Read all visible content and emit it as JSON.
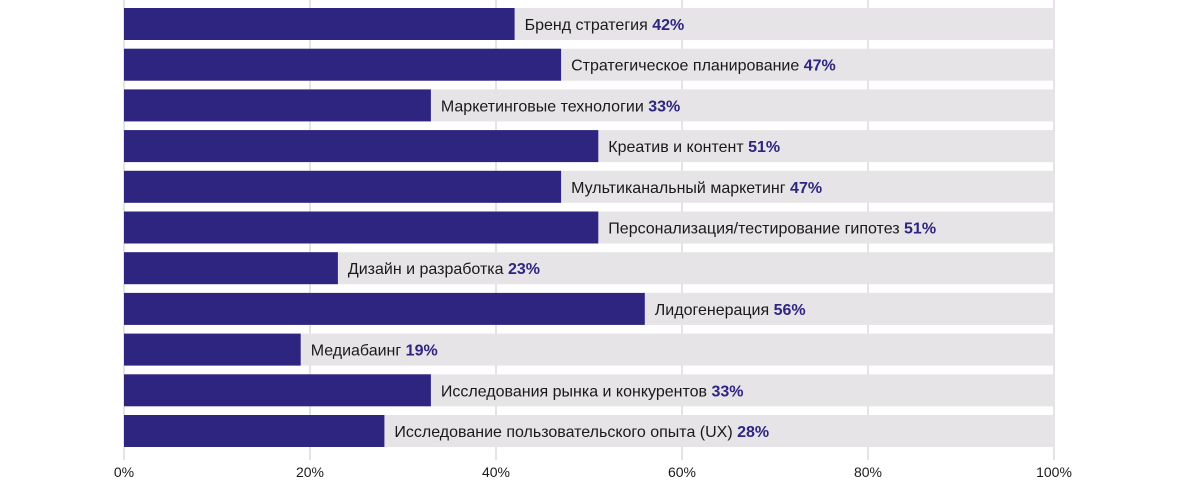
{
  "chart_data": {
    "type": "bar",
    "orientation": "horizontal",
    "categories": [
      "Бренд стратегия",
      "Стратегическое планирование",
      "Маркетинговые технологии",
      "Креатив и контент",
      "Мультиканальный маркетинг",
      "Персонализация/тестирование гипотез",
      "Дизайн и разработка",
      "Лидогенерация",
      "Медиабаинг",
      "Исследования рынка и конкурентов",
      "Исследование пользовательского опыта (UX)"
    ],
    "values": [
      42,
      47,
      33,
      51,
      47,
      51,
      23,
      56,
      19,
      33,
      28
    ],
    "value_labels": [
      "42%",
      "47%",
      "33%",
      "51%",
      "47%",
      "51%",
      "23%",
      "56%",
      "19%",
      "33%",
      "28%"
    ],
    "xlim": [
      0,
      100
    ],
    "x_ticks": [
      "0%",
      "20%",
      "40%",
      "60%",
      "80%",
      "100%"
    ],
    "grid": true,
    "legend": "none",
    "colors": {
      "bar": "#2e2580",
      "track": "#e6e4e6",
      "value_text": "#2e2580",
      "grid": "#c8c8c8"
    }
  }
}
